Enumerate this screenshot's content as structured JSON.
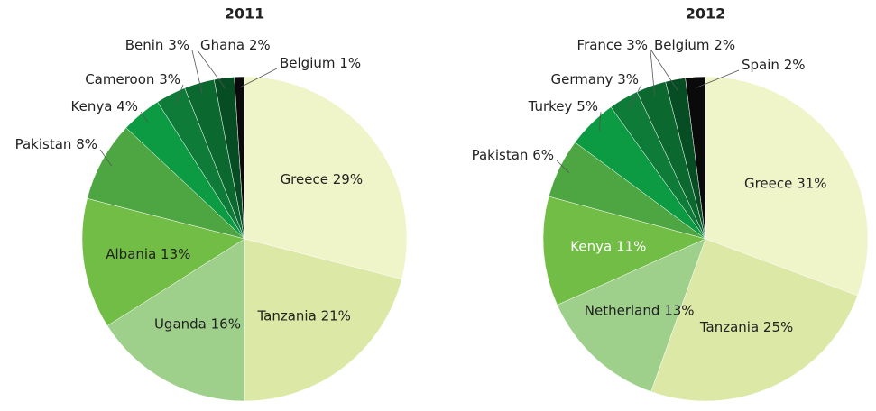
{
  "chart_data": [
    {
      "type": "pie",
      "title": "2011",
      "categories": [
        "Greece",
        "Tanzania",
        "Uganda",
        "Albania",
        "Pakistan",
        "Kenya",
        "Cameroon",
        "Benin",
        "Ghana",
        "Belgium"
      ],
      "values": [
        29,
        21,
        16,
        13,
        8,
        4,
        3,
        3,
        2,
        1
      ],
      "value_labels": [
        "29%",
        "21%",
        "16%",
        "13%",
        "8%",
        "4%",
        "3%",
        "3%",
        "2%",
        "1%"
      ],
      "colors": [
        "#eff4c9",
        "#dce8a6",
        "#9ecf8b",
        "#72bd45",
        "#4ea642",
        "#0c9a42",
        "#0f7b39",
        "#0b6930",
        "#064d23",
        "#0a0a0a"
      ]
    },
    {
      "type": "pie",
      "title": "2012",
      "categories": [
        "Greece",
        "Tanzania",
        "Netherland",
        "Kenya",
        "Pakistan",
        "Turkey",
        "Germany",
        "France",
        "Belgium",
        "Spain"
      ],
      "values": [
        31,
        25,
        13,
        11,
        6,
        5,
        3,
        3,
        2,
        2
      ],
      "value_labels": [
        "31%",
        "25%",
        "13%",
        "11%",
        "6%",
        "5%",
        "3%",
        "3%",
        "2%",
        "2%"
      ],
      "colors": [
        "#eff4c9",
        "#dce8a6",
        "#9ecf8b",
        "#72bd45",
        "#4ea642",
        "#0c9a42",
        "#0f7b39",
        "#0b6930",
        "#064d23",
        "#0a0a0a"
      ]
    }
  ]
}
